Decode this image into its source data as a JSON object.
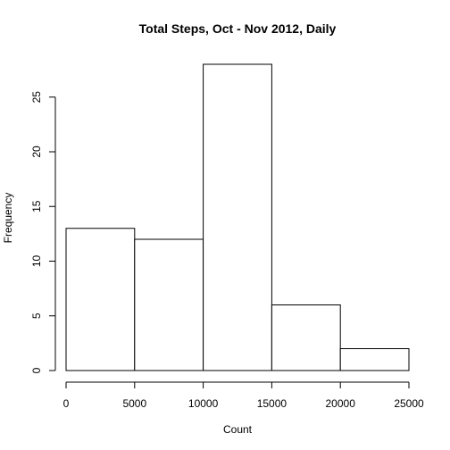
{
  "chart_data": {
    "type": "bar",
    "subtype": "histogram",
    "title": "Total Steps, Oct - Nov 2012, Daily",
    "xlabel": "Count",
    "ylabel": "Frequency",
    "bins": [
      {
        "start": 0,
        "end": 5000,
        "count": 13
      },
      {
        "start": 5000,
        "end": 10000,
        "count": 12
      },
      {
        "start": 10000,
        "end": 15000,
        "count": 28
      },
      {
        "start": 15000,
        "end": 20000,
        "count": 6
      },
      {
        "start": 20000,
        "end": 25000,
        "count": 2
      }
    ],
    "xlim": [
      0,
      25000
    ],
    "ylim": [
      0,
      28
    ],
    "xticks": [
      0,
      5000,
      10000,
      15000,
      20000,
      25000
    ],
    "yticks": [
      0,
      5,
      10,
      15,
      20,
      25
    ],
    "grid": false,
    "bar_fill": "#ffffff",
    "bar_stroke": "#000000"
  }
}
